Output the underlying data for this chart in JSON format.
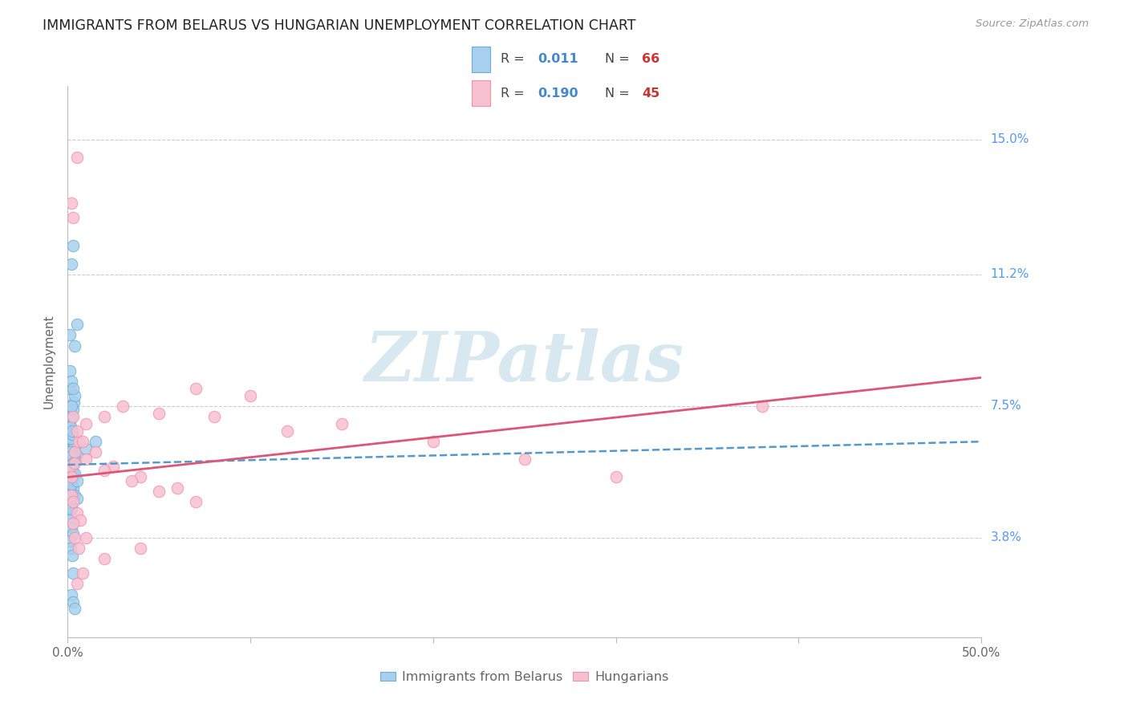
{
  "title": "IMMIGRANTS FROM BELARUS VS HUNGARIAN UNEMPLOYMENT CORRELATION CHART",
  "source": "Source: ZipAtlas.com",
  "xmin": 0.0,
  "xmax": 50.0,
  "ymin": 1.0,
  "ymax": 16.5,
  "ylabel_ticks": [
    3.8,
    7.5,
    11.2,
    15.0
  ],
  "ylabel_labels": [
    "3.8%",
    "7.5%",
    "11.2%",
    "15.0%"
  ],
  "legend1_R": "0.011",
  "legend1_N": "66",
  "legend2_R": "0.190",
  "legend2_N": "45",
  "blue_color": "#a8d0ee",
  "blue_edge_color": "#6aaed6",
  "pink_color": "#f7c0d0",
  "pink_edge_color": "#f090aa",
  "blue_line_color": "#5599cc",
  "pink_line_color": "#dd5577",
  "watermark_color": "#d8e8f0",
  "watermark_text": "ZIPatlas",
  "blue_points_x": [
    0.2,
    0.3,
    0.1,
    0.5,
    0.2,
    0.1,
    0.1,
    0.15,
    0.1,
    0.3,
    0.4,
    0.2,
    0.3,
    0.1,
    0.2,
    0.15,
    0.25,
    0.1,
    0.2,
    0.3,
    0.35,
    0.4,
    0.1,
    0.2,
    0.15,
    0.25,
    0.3,
    0.4,
    0.5,
    0.2,
    0.1,
    0.1,
    0.2,
    0.3,
    0.15,
    0.1,
    0.2,
    0.25,
    0.3,
    0.35,
    0.1,
    0.2,
    0.3,
    0.15,
    0.4,
    0.5,
    0.1,
    0.2,
    0.3,
    0.1,
    1.0,
    0.15,
    0.25,
    0.3,
    0.1,
    0.2,
    0.3,
    0.4,
    0.1,
    0.5,
    0.2,
    0.3,
    1.5,
    0.2,
    0.3,
    0.4
  ],
  "blue_points_y": [
    6.2,
    6.5,
    6.8,
    6.1,
    5.9,
    5.7,
    5.5,
    5.8,
    6.0,
    6.3,
    6.4,
    6.2,
    5.6,
    5.4,
    5.3,
    6.6,
    6.7,
    7.0,
    7.2,
    7.4,
    7.6,
    7.8,
    8.0,
    7.5,
    6.9,
    6.8,
    5.2,
    5.0,
    4.9,
    4.7,
    4.5,
    5.1,
    5.3,
    5.5,
    5.0,
    4.8,
    4.6,
    5.8,
    6.0,
    6.1,
    6.2,
    6.1,
    5.9,
    5.8,
    5.6,
    5.4,
    4.3,
    4.1,
    3.9,
    3.7,
    6.3,
    3.5,
    3.3,
    2.8,
    8.5,
    8.2,
    8.0,
    9.2,
    9.5,
    9.8,
    11.5,
    12.0,
    6.5,
    2.2,
    2.0,
    1.8
  ],
  "pink_points_x": [
    0.2,
    0.5,
    0.3,
    0.4,
    0.1,
    0.2,
    0.4,
    0.6,
    1.0,
    2.0,
    3.0,
    5.0,
    7.0,
    10.0,
    15.0,
    20.0,
    25.0,
    30.0,
    38.0,
    0.3,
    0.5,
    0.8,
    1.5,
    2.5,
    4.0,
    6.0,
    8.0,
    12.0,
    0.2,
    0.3,
    0.5,
    0.7,
    1.0,
    2.0,
    3.5,
    5.0,
    7.0,
    0.4,
    0.6,
    1.0,
    2.0,
    4.0,
    0.3,
    0.5,
    0.8
  ],
  "pink_points_y": [
    13.2,
    14.5,
    12.8,
    6.2,
    5.8,
    5.5,
    5.9,
    6.5,
    7.0,
    7.2,
    7.5,
    7.3,
    8.0,
    7.8,
    7.0,
    6.5,
    6.0,
    5.5,
    7.5,
    7.2,
    6.8,
    6.5,
    6.2,
    5.8,
    5.5,
    5.2,
    7.2,
    6.8,
    5.0,
    4.8,
    4.5,
    4.3,
    6.0,
    5.7,
    5.4,
    5.1,
    4.8,
    3.8,
    3.5,
    3.8,
    3.2,
    3.5,
    4.2,
    2.5,
    2.8
  ],
  "blue_line_x0": 0.0,
  "blue_line_x1": 50.0,
  "blue_line_y0": 5.85,
  "blue_line_y1": 6.5,
  "pink_line_x0": 0.0,
  "pink_line_x1": 50.0,
  "pink_line_y0": 5.5,
  "pink_line_y1": 8.3
}
